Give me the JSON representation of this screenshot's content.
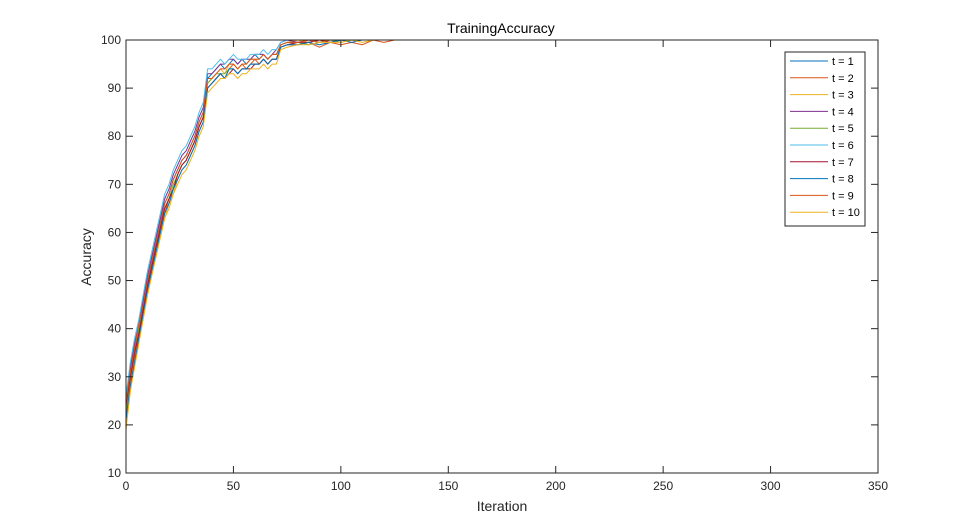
{
  "chart_data": {
    "type": "line",
    "title": "TrainingAccuracy",
    "xlabel": "Iteration",
    "ylabel": "Accuracy",
    "xlim": [
      0,
      350
    ],
    "ylim": [
      10,
      100
    ],
    "xticks": [
      0,
      50,
      100,
      150,
      200,
      250,
      300,
      350
    ],
    "yticks": [
      10,
      20,
      30,
      40,
      50,
      60,
      70,
      80,
      90,
      100
    ],
    "grid": false,
    "legend_position": "top-right",
    "x": [
      0,
      2,
      4,
      6,
      8,
      10,
      12,
      14,
      16,
      18,
      20,
      22,
      24,
      26,
      28,
      30,
      32,
      34,
      36,
      38,
      40,
      42,
      44,
      46,
      48,
      50,
      52,
      54,
      56,
      58,
      60,
      62,
      64,
      66,
      68,
      70,
      72,
      75,
      80,
      85,
      90,
      95,
      100,
      105,
      110,
      115,
      120,
      125,
      130,
      135,
      140,
      150,
      200,
      250,
      300,
      350
    ],
    "series": [
      {
        "name": "t = 1",
        "color": "#0072BD",
        "values": [
          24,
          31,
          36,
          40,
          45,
          50,
          54,
          58,
          62,
          66,
          68,
          71,
          73,
          75,
          76,
          78,
          80,
          83,
          85,
          92,
          93,
          94,
          95,
          94,
          95,
          96,
          95,
          96,
          95,
          96,
          97,
          96,
          97,
          96,
          97,
          97,
          99,
          99.5,
          99.5,
          100,
          99.5,
          100,
          100,
          100,
          100,
          100,
          100,
          100,
          100,
          100,
          100,
          100,
          100,
          100,
          100,
          100
        ]
      },
      {
        "name": "t = 2",
        "color": "#D95319",
        "values": [
          22,
          29,
          34,
          39,
          43,
          48,
          53,
          57,
          60,
          64,
          67,
          69,
          72,
          74,
          75,
          77,
          79,
          82,
          84,
          90,
          91,
          92,
          93,
          92,
          94,
          95,
          94,
          95,
          94,
          95,
          96,
          95,
          96,
          95,
          96,
          96,
          98.5,
          99,
          99,
          99.5,
          98.5,
          99.5,
          99,
          99.5,
          99,
          100,
          99.5,
          100,
          100,
          100,
          100,
          100,
          100,
          100,
          100,
          100
        ]
      },
      {
        "name": "t = 3",
        "color": "#EDB120",
        "values": [
          20,
          27,
          33,
          38,
          42,
          47,
          52,
          56,
          59,
          63,
          66,
          68,
          71,
          73,
          74,
          76,
          78,
          81,
          83,
          91,
          92,
          93,
          94,
          93,
          95,
          95,
          94,
          95,
          95,
          96,
          96,
          96,
          97,
          96,
          97,
          97,
          99,
          99.5,
          100,
          99.5,
          100,
          99.5,
          100,
          100,
          100,
          100,
          100,
          100,
          100,
          100,
          100,
          100,
          100,
          100,
          100,
          100
        ]
      },
      {
        "name": "t = 4",
        "color": "#7E2F8E",
        "values": [
          25,
          32,
          37,
          41,
          46,
          51,
          55,
          59,
          63,
          67,
          69,
          72,
          74,
          76,
          77,
          79,
          81,
          84,
          86,
          93,
          93,
          94,
          95,
          95,
          96,
          96,
          95,
          96,
          96,
          96,
          97,
          97,
          97,
          96,
          97,
          98,
          99.5,
          100,
          99.5,
          100,
          100,
          100,
          100,
          100,
          100,
          100,
          100,
          100,
          100,
          100,
          100,
          100,
          100,
          100,
          100,
          100
        ]
      },
      {
        "name": "t = 5",
        "color": "#77AC30",
        "values": [
          23,
          30,
          35,
          40,
          44,
          49,
          53,
          57,
          61,
          65,
          67,
          70,
          72,
          74,
          75,
          77,
          79,
          82,
          84,
          91,
          92,
          93,
          93,
          93,
          94,
          94,
          93,
          94,
          94,
          95,
          95,
          95,
          96,
          95,
          96,
          96,
          98.5,
          99,
          99.5,
          99,
          99.5,
          100,
          99.5,
          100,
          100,
          100,
          100,
          100,
          100,
          100,
          100,
          100,
          100,
          100,
          100,
          100
        ]
      },
      {
        "name": "t = 6",
        "color": "#4DBEEE",
        "values": [
          26,
          33,
          38,
          42,
          47,
          52,
          56,
          60,
          64,
          68,
          70,
          73,
          75,
          77,
          78,
          80,
          82,
          85,
          87,
          94,
          94,
          95,
          96,
          95,
          96,
          97,
          96,
          96,
          96,
          97,
          97,
          97,
          98,
          97,
          98,
          98,
          99.5,
          100,
          100,
          100,
          100,
          100,
          100,
          100,
          100,
          100,
          100,
          100,
          100,
          100,
          100,
          100,
          100,
          100,
          100,
          100
        ]
      },
      {
        "name": "t = 7",
        "color": "#A2142F",
        "values": [
          24,
          30,
          35,
          39,
          44,
          49,
          53,
          57,
          61,
          65,
          67,
          69,
          72,
          74,
          75,
          77,
          79,
          82,
          84,
          90,
          91,
          92,
          93,
          92,
          93,
          94,
          93,
          94,
          94,
          94,
          95,
          95,
          96,
          95,
          96,
          96,
          98.5,
          99,
          99.5,
          99.5,
          100,
          99.5,
          100,
          100,
          100,
          100,
          100,
          100,
          100,
          100,
          100,
          100,
          100,
          100,
          100,
          100
        ]
      },
      {
        "name": "t = 8",
        "color": "#0072BD",
        "values": [
          21,
          28,
          33,
          38,
          43,
          48,
          52,
          56,
          60,
          64,
          66,
          69,
          71,
          73,
          74,
          76,
          78,
          81,
          83,
          90,
          91,
          92,
          93,
          92,
          94,
          94,
          93,
          94,
          94,
          95,
          95,
          95,
          96,
          95,
          96,
          96,
          98.5,
          99,
          99,
          99.5,
          99,
          99.5,
          100,
          99.5,
          100,
          100,
          100,
          100,
          100,
          100,
          100,
          100,
          100,
          100,
          100,
          100
        ]
      },
      {
        "name": "t = 9",
        "color": "#D95319",
        "values": [
          25,
          31,
          36,
          41,
          45,
          50,
          54,
          58,
          62,
          66,
          68,
          71,
          73,
          75,
          76,
          78,
          80,
          83,
          85,
          92,
          92,
          93,
          94,
          94,
          95,
          95,
          94,
          95,
          95,
          96,
          96,
          96,
          97,
          96,
          97,
          97,
          99,
          99.5,
          99.5,
          100,
          99.5,
          100,
          100,
          100,
          100,
          100,
          100,
          100,
          100,
          100,
          100,
          100,
          100,
          100,
          100,
          100
        ]
      },
      {
        "name": "t = 10",
        "color": "#EDB120",
        "values": [
          19,
          27,
          32,
          37,
          42,
          47,
          51,
          55,
          59,
          63,
          65,
          68,
          70,
          72,
          73,
          75,
          77,
          80,
          82,
          89,
          90,
          91,
          92,
          92,
          93,
          93,
          92,
          93,
          93,
          94,
          94,
          94,
          95,
          94,
          95,
          95,
          98,
          98.5,
          99,
          99,
          99.5,
          99.5,
          99.5,
          100,
          99.5,
          100,
          100,
          100,
          100,
          100,
          100,
          100,
          100,
          100,
          100,
          100
        ]
      }
    ]
  }
}
